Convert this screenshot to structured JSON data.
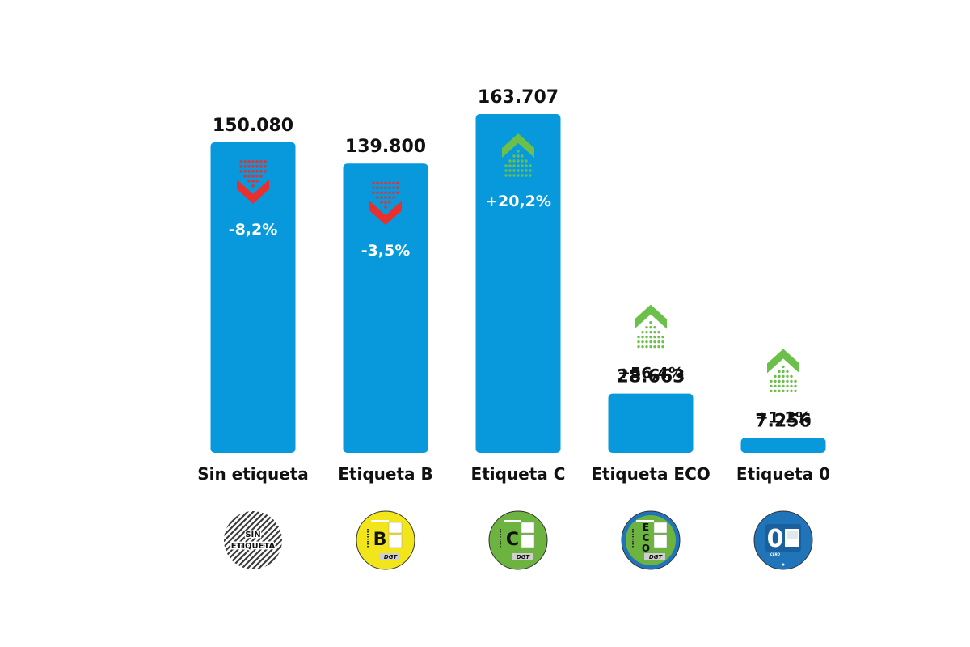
{
  "chart_data": {
    "type": "bar",
    "title": "",
    "xlabel": "",
    "ylabel": "",
    "categories": [
      "Sin etiqueta",
      "Etiqueta B",
      "Etiqueta C",
      "Etiqueta ECO",
      "Etiqueta 0"
    ],
    "values": [
      150080,
      139800,
      163707,
      28663,
      7256
    ],
    "value_labels": [
      "150.080",
      "139.800",
      "163.707",
      "28.663",
      "7.256"
    ],
    "changes": [
      "-8,2%",
      "-3,5%",
      "+20,2%",
      "+56,4%",
      "+1,2%"
    ],
    "trend": [
      "down",
      "down",
      "up",
      "up",
      "up"
    ],
    "ylim": [
      0,
      163707
    ],
    "grid": false,
    "bar_color": "#0799dc",
    "up_color": "#6cc04a",
    "down_color": "#e8302e",
    "badges": [
      {
        "type": "sin",
        "lines": [
          "SIN",
          "ETIQUETA"
        ]
      },
      {
        "type": "B",
        "letter": "B",
        "color": "#f2e61a",
        "brand": "DGT"
      },
      {
        "type": "C",
        "letter": "C",
        "color": "#6cb33f",
        "brand": "DGT"
      },
      {
        "type": "ECO",
        "letters": [
          "E",
          "C",
          "O"
        ],
        "color": "#1f74ba",
        "inner_color": "#6cb33f",
        "brand": "DGT"
      },
      {
        "type": "0",
        "letter": "0",
        "color": "#1f74ba",
        "sub": "CERO",
        "fine": "CERO EMISIONES"
      }
    ]
  }
}
